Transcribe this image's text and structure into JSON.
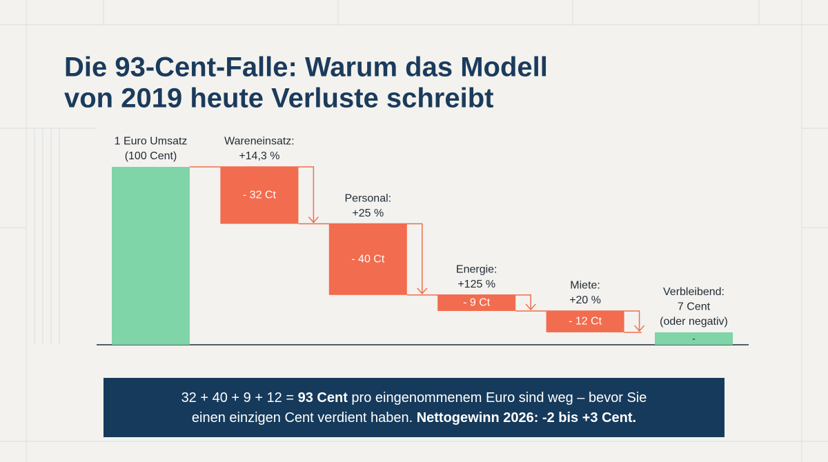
{
  "chart_data": {
    "type": "waterfall",
    "title": [
      "Die 93-Cent-Falle: Warum das Modell",
      "von 2019 heute Verluste schreibt"
    ],
    "categories": [
      [
        "1 Euro Umsatz",
        "(100 Cent)"
      ],
      [
        "Wareneinsatz:",
        "+14,3 %"
      ],
      [
        "Personal:",
        "+25 %"
      ],
      [
        "Energie:",
        "+125 %"
      ],
      [
        "Miete:",
        "+20 %"
      ],
      [
        "Verbleibend:",
        "7 Cent",
        "(oder negativ)"
      ]
    ],
    "values": [
      100,
      -32,
      -40,
      -9,
      -12,
      7
    ],
    "kinds": [
      "start",
      "step",
      "step",
      "step",
      "step",
      "total"
    ],
    "value_labels": [
      null,
      "- 32 Ct",
      "- 40 Ct",
      "- 9 Ct",
      "- 12 Ct",
      null
    ],
    "total_label": "-",
    "colors": {
      "start": "#7fd4a8",
      "step": "#f26c4f",
      "total": "#7fd4a8"
    },
    "footer": [
      [
        {
          "text": "32 + 40 + 9 + 12 = ",
          "bold": false
        },
        {
          "text": "93 Cent",
          "bold": true
        },
        {
          "text": " pro eingenommenem Euro sind weg – bevor Sie",
          "bold": false
        }
      ],
      [
        {
          "text": "einen einzigen Cent verdient haben. ",
          "bold": false
        },
        {
          "text": "Nettogewinn 2026: -2 bis +3 Cent.",
          "bold": true
        }
      ]
    ]
  }
}
